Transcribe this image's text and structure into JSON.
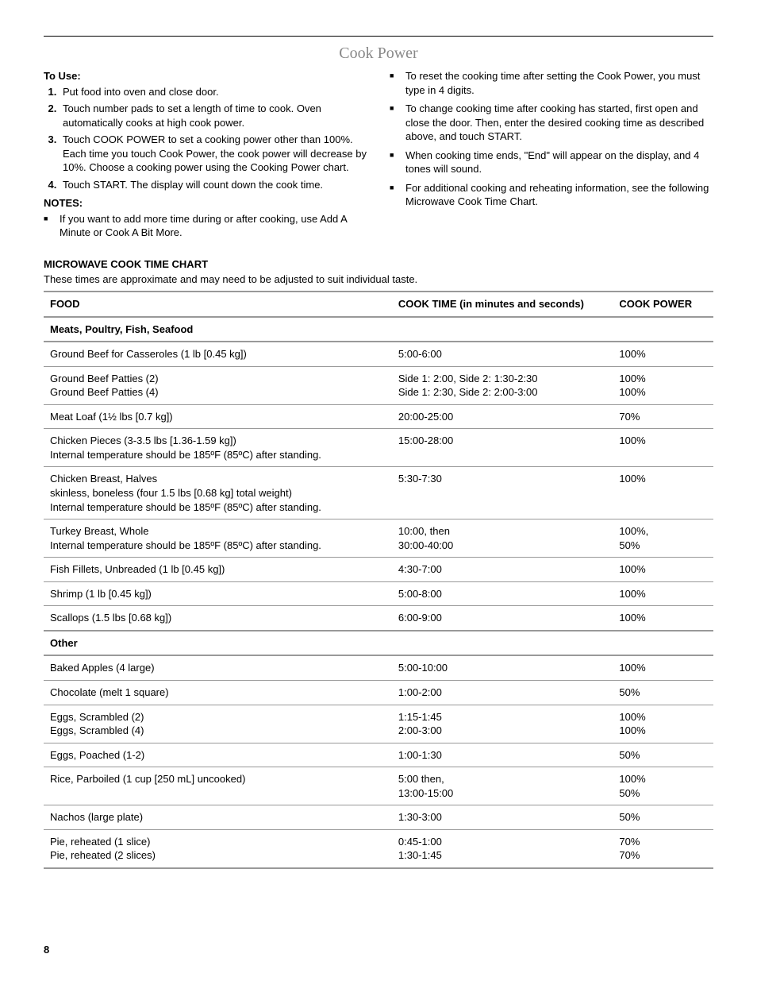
{
  "page": {
    "title": "Cook Power",
    "number": "8"
  },
  "left": {
    "to_use": "To Use:",
    "steps": [
      "Put food into oven and close door.",
      "Touch number pads to set a length of time to cook. Oven automatically cooks at high cook power.",
      "Touch COOK POWER to set a cooking power other than 100%. Each time you touch Cook Power, the cook power will decrease by 10%. Choose a cooking power using the Cooking Power chart.",
      "Touch START. The display will count down the cook time."
    ],
    "notes_label": "NOTES:",
    "notes": [
      "If you want to add more time during or after cooking, use Add A Minute or Cook A Bit More."
    ]
  },
  "right": {
    "notes": [
      "To reset the cooking time after setting the Cook Power, you must type in 4 digits.",
      "To change cooking time after cooking has started, first open and close the door. Then, enter the desired cooking time as described above, and touch START.",
      "When cooking time ends, \"End\" will appear on the display, and 4 tones will sound.",
      "For additional cooking and reheating information, see the following Microwave Cook Time Chart."
    ]
  },
  "chart": {
    "title": "MICROWAVE COOK TIME CHART",
    "subtitle": "These times are approximate and may need to be adjusted to suit individual taste.",
    "headers": {
      "food": "FOOD",
      "time": "COOK TIME (in minutes and seconds)",
      "power": "COOK POWER"
    },
    "sections": [
      {
        "label": "Meats, Poultry, Fish, Seafood",
        "rows": [
          {
            "food": "Ground Beef for Casseroles (1 lb [0.45 kg])",
            "time": "5:00-6:00",
            "power": "100%"
          },
          {
            "food": "Ground Beef Patties (2)\nGround Beef Patties (4)",
            "time": "Side 1: 2:00, Side 2: 1:30-2:30\nSide 1: 2:30, Side 2: 2:00-3:00",
            "power": "100%\n100%"
          },
          {
            "food": "Meat Loaf (1½ lbs [0.7 kg])",
            "time": "20:00-25:00",
            "power": "70%"
          },
          {
            "food": "Chicken Pieces (3-3.5 lbs [1.36-1.59 kg])\nInternal temperature should be 185ºF (85ºC) after standing.",
            "time": "15:00-28:00",
            "power": "100%"
          },
          {
            "food": "Chicken Breast, Halves\nskinless, boneless (four 1.5 lbs [0.68 kg] total weight)\nInternal temperature should be 185ºF (85ºC) after standing.",
            "time": "5:30-7:30",
            "power": "100%"
          },
          {
            "food": "Turkey Breast, Whole\nInternal temperature should be 185ºF (85ºC) after standing.",
            "time": "10:00, then\n30:00-40:00",
            "power": "100%,\n50%"
          },
          {
            "food": "Fish Fillets, Unbreaded (1 lb [0.45 kg])",
            "time": "4:30-7:00",
            "power": "100%"
          },
          {
            "food": "Shrimp (1 lb [0.45 kg])",
            "time": "5:00-8:00",
            "power": "100%"
          },
          {
            "food": "Scallops (1.5 lbs [0.68 kg])",
            "time": "6:00-9:00",
            "power": "100%"
          }
        ]
      },
      {
        "label": "Other",
        "rows": [
          {
            "food": "Baked Apples (4 large)",
            "time": "5:00-10:00",
            "power": "100%"
          },
          {
            "food": "Chocolate (melt 1 square)",
            "time": "1:00-2:00",
            "power": "50%"
          },
          {
            "food": "Eggs, Scrambled (2)\nEggs, Scrambled (4)",
            "time": "1:15-1:45\n2:00-3:00",
            "power": "100%\n100%"
          },
          {
            "food": "Eggs, Poached (1-2)",
            "time": "1:00-1:30",
            "power": "50%"
          },
          {
            "food": "Rice, Parboiled (1 cup [250 mL] uncooked)",
            "time": "5:00 then,\n13:00-15:00",
            "power": "100%\n50%"
          },
          {
            "food": "Nachos (large plate)",
            "time": "1:30-3:00",
            "power": "50%"
          },
          {
            "food": "Pie, reheated (1 slice)\nPie, reheated (2 slices)",
            "time": "0:45-1:00\n1:30-1:45",
            "power": "70%\n70%"
          }
        ]
      }
    ]
  }
}
